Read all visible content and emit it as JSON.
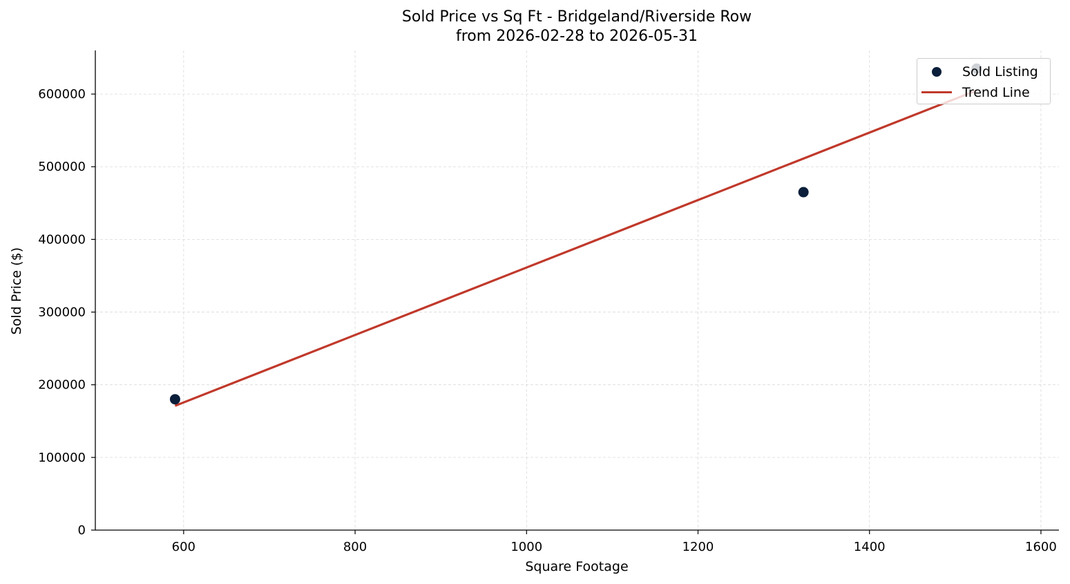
{
  "chart_data": {
    "type": "scatter",
    "title": "Sold Price vs Sq Ft - Bridgeland/Riverside Row",
    "subtitle": "from 2026-02-28 to 2026-05-31",
    "xlabel": "Square Footage",
    "ylabel": "Sold Price ($)",
    "xlim": [
      497,
      1621
    ],
    "ylim": [
      0,
      660000
    ],
    "xticks": [
      600,
      800,
      1000,
      1200,
      1400,
      1600
    ],
    "yticks": [
      0,
      100000,
      200000,
      300000,
      400000,
      500000,
      600000
    ],
    "grid": true,
    "legend_position": "top-right",
    "series": [
      {
        "name": "Sold Listing",
        "kind": "scatter",
        "color": "#0b1f3a",
        "points": [
          {
            "x": 590,
            "y": 180000
          },
          {
            "x": 1323,
            "y": 465000
          },
          {
            "x": 1525,
            "y": 635000
          }
        ]
      },
      {
        "name": "Trend Line",
        "kind": "line",
        "color": "#c0392b",
        "points": [
          {
            "x": 590,
            "y": 171000
          },
          {
            "x": 1525,
            "y": 605000
          }
        ]
      }
    ]
  }
}
